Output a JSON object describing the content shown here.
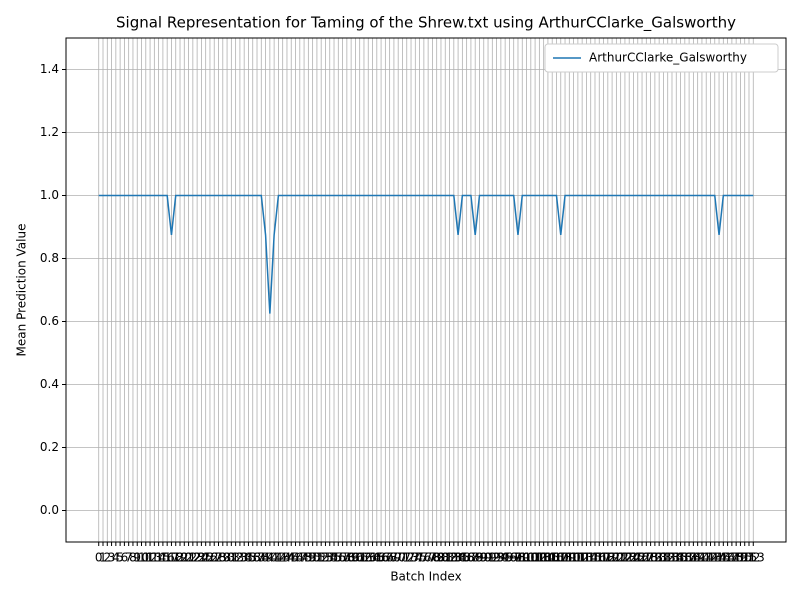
{
  "chart_data": {
    "type": "line",
    "title": "Signal Representation for Taming of the Shrew.txt using ArthurCClarke_Galsworthy",
    "xlabel": "Batch Index",
    "ylabel": "Mean Prediction Value",
    "x": [
      0,
      1,
      2,
      3,
      4,
      5,
      6,
      7,
      8,
      9,
      10,
      11,
      12,
      13,
      14,
      15,
      16,
      17,
      18,
      19,
      20,
      21,
      22,
      23,
      24,
      25,
      26,
      27,
      28,
      29,
      30,
      31,
      32,
      33,
      34,
      35,
      36,
      37,
      38,
      39,
      40,
      41,
      42,
      43,
      44,
      45,
      46,
      47,
      48,
      49,
      50,
      51,
      52,
      53,
      54,
      55,
      56,
      57,
      58,
      59,
      60,
      61,
      62,
      63,
      64,
      65,
      66,
      67,
      68,
      69,
      70,
      71,
      72,
      73,
      74,
      75,
      76,
      77,
      78,
      79,
      80,
      81,
      82,
      83,
      84,
      85,
      86,
      87,
      88,
      89,
      90,
      91,
      92,
      93,
      94,
      95,
      96,
      97,
      98,
      99,
      100,
      101,
      102,
      103,
      104,
      105,
      106,
      107,
      108,
      109,
      110,
      111,
      112,
      113,
      114,
      115,
      116,
      117,
      118,
      119,
      120,
      121,
      122,
      123,
      124,
      125,
      126,
      127,
      128,
      129,
      130,
      131,
      132,
      133,
      134,
      135,
      136,
      137,
      138,
      139,
      140,
      141,
      142,
      143,
      144,
      145,
      146,
      147,
      148,
      149,
      150,
      151,
      152,
      153
    ],
    "series": [
      {
        "name": "ArthurCClarke_Galsworthy",
        "color": "#1f77b4",
        "values": [
          1,
          1,
          1,
          1,
          1,
          1,
          1,
          1,
          1,
          1,
          1,
          1,
          1,
          1,
          1,
          1,
          1,
          0.875,
          1,
          1,
          1,
          1,
          1,
          1,
          1,
          1,
          1,
          1,
          1,
          1,
          1,
          1,
          1,
          1,
          1,
          1,
          1,
          1,
          1,
          0.875,
          0.625,
          0.875,
          1,
          1,
          1,
          1,
          1,
          1,
          1,
          1,
          1,
          1,
          1,
          1,
          1,
          1,
          1,
          1,
          1,
          1,
          1,
          1,
          1,
          1,
          1,
          1,
          1,
          1,
          1,
          1,
          1,
          1,
          1,
          1,
          1,
          1,
          1,
          1,
          1,
          1,
          1,
          1,
          1,
          1,
          0.875,
          1,
          1,
          1,
          0.875,
          1,
          1,
          1,
          1,
          1,
          1,
          1,
          1,
          1,
          0.875,
          1,
          1,
          1,
          1,
          1,
          1,
          1,
          1,
          1,
          0.875,
          1,
          1,
          1,
          1,
          1,
          1,
          1,
          1,
          1,
          1,
          1,
          1,
          1,
          1,
          1,
          1,
          1,
          1,
          1,
          1,
          1,
          1,
          1,
          1,
          1,
          1,
          1,
          1,
          1,
          1,
          1,
          1,
          1,
          1,
          1,
          1,
          0.875,
          1,
          1,
          1,
          1,
          1,
          1,
          1,
          1
        ]
      }
    ],
    "xlim": [
      -7.65,
      160.65
    ],
    "xticks": [
      0,
      1,
      2,
      3,
      4,
      5,
      6,
      7,
      8,
      9,
      10,
      11,
      12,
      13,
      14,
      15,
      16,
      17,
      18,
      19,
      20,
      21,
      22,
      23,
      24,
      25,
      26,
      27,
      28,
      29,
      30,
      31,
      32,
      33,
      34,
      35,
      36,
      37,
      38,
      39,
      40,
      41,
      42,
      43,
      44,
      45,
      46,
      47,
      48,
      49,
      50,
      51,
      52,
      53,
      54,
      55,
      56,
      57,
      58,
      59,
      60,
      61,
      62,
      63,
      64,
      65,
      66,
      67,
      68,
      69,
      70,
      71,
      72,
      73,
      74,
      75,
      76,
      77,
      78,
      79,
      80,
      81,
      82,
      83,
      84,
      85,
      86,
      87,
      88,
      89,
      90,
      91,
      92,
      93,
      94,
      95,
      96,
      97,
      98,
      99,
      100,
      101,
      102,
      103,
      104,
      105,
      106,
      107,
      108,
      109,
      110,
      111,
      112,
      113,
      114,
      115,
      116,
      117,
      118,
      119,
      120,
      121,
      122,
      123,
      124,
      125,
      126,
      127,
      128,
      129,
      130,
      131,
      132,
      133,
      134,
      135,
      136,
      137,
      138,
      139,
      140,
      141,
      142,
      143,
      144,
      145,
      146,
      147,
      148,
      149,
      150,
      151,
      152,
      153
    ],
    "ylim": [
      -0.1,
      1.5
    ],
    "yticks": [
      {
        "value": 0,
        "label": "0.0"
      },
      0.2,
      0.4,
      0.6,
      0.8,
      {
        "value": 1,
        "label": "1.0"
      },
      1.2,
      1.4
    ],
    "grid": true,
    "legend": "upper right"
  }
}
